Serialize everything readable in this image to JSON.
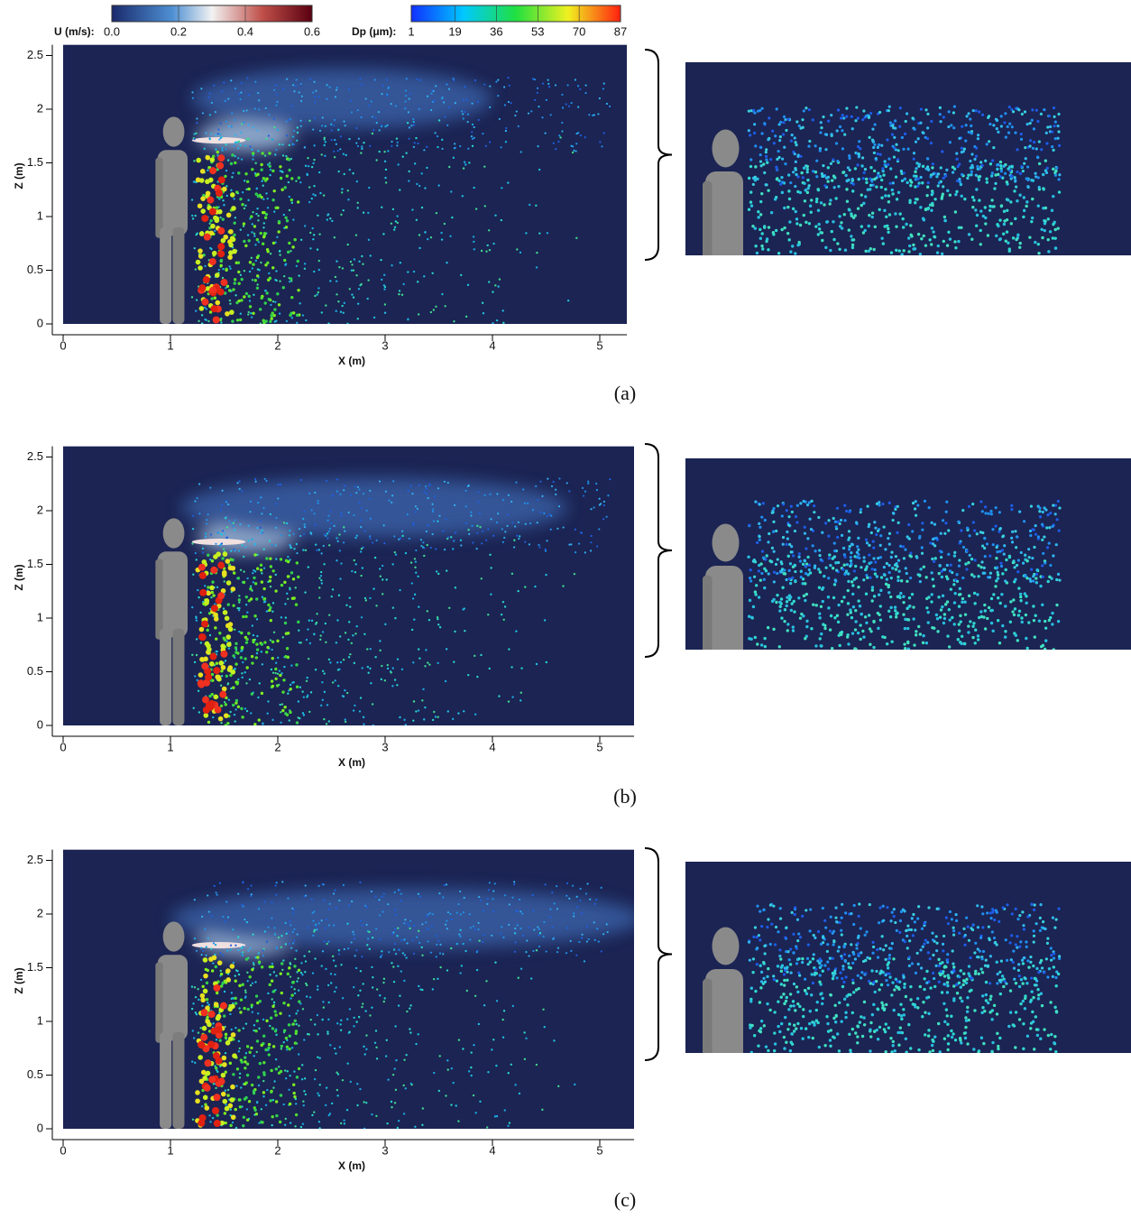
{
  "colorbars": [
    {
      "label": "U (m/s):",
      "lim": [
        0,
        0.6
      ],
      "ticks": [
        {
          "value": 0,
          "label": "0.0"
        },
        0.2,
        0.4,
        0.6
      ]
    },
    {
      "label": "Dp (μm):",
      "lim": [
        1,
        87
      ],
      "ticks": [
        1,
        19,
        36,
        53,
        70,
        87
      ]
    }
  ],
  "panels": [
    {
      "caption": "(a)",
      "xlabel": "X (m)",
      "ylabel": "Z (m)",
      "xlim": [
        0,
        5.25
      ],
      "ylim": [
        0,
        2.6
      ],
      "xticks": [
        0,
        1,
        2,
        3,
        4,
        5
      ],
      "yticks": [
        0,
        0.5,
        1,
        1.5,
        2,
        2.5
      ]
    },
    {
      "caption": "(b)",
      "xlabel": "X (m)",
      "ylabel": "Z (m)",
      "xlim": [
        0,
        5.3
      ],
      "ylim": [
        0,
        2.6
      ],
      "xticks": [
        0,
        1,
        2,
        3,
        4,
        5
      ],
      "yticks": [
        0,
        0.5,
        1,
        1.5,
        2,
        2.5
      ]
    },
    {
      "caption": "(c)",
      "xlabel": "X (m)",
      "ylabel": "Z (m)",
      "xlim": [
        0,
        5.3
      ],
      "ylim": [
        0,
        2.6
      ],
      "xticks": [
        0,
        1,
        2,
        3,
        4,
        5
      ],
      "yticks": [
        0,
        0.5,
        1,
        1.5,
        2,
        2.5
      ]
    }
  ]
}
